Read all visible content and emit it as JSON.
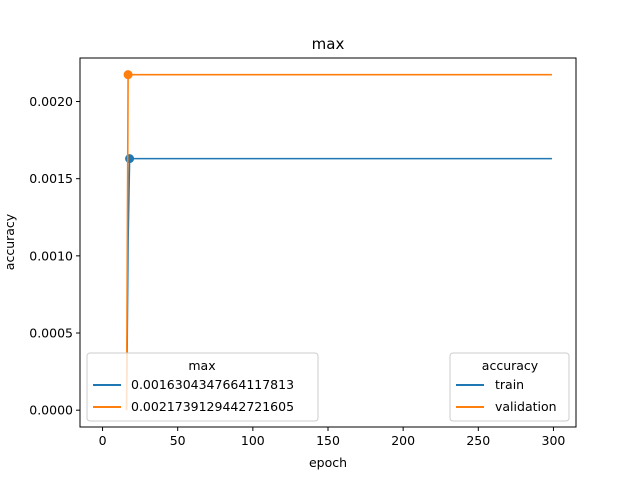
{
  "chart_data": {
    "type": "line",
    "title": "max",
    "xlabel": "epoch",
    "ylabel": "accuracy",
    "xlim": [
      -15,
      315
    ],
    "ylim": [
      -0.000109,
      0.002282
    ],
    "grid": false,
    "x_ticks": [
      0,
      50,
      100,
      150,
      200,
      250,
      300
    ],
    "y_ticks": [
      0.0,
      0.0005,
      0.001,
      0.0015,
      0.002
    ],
    "y_tick_labels": [
      "0.0000",
      "0.0005",
      "0.0010",
      "0.0015",
      "0.0020"
    ],
    "series": [
      {
        "name": "train",
        "color": "#1f77b4",
        "x": [
          16,
          17,
          18,
          299
        ],
        "y": [
          0.0,
          0.0011,
          0.00163,
          0.00163
        ],
        "marker": {
          "x": 18,
          "y": 0.00163
        }
      },
      {
        "name": "validation",
        "color": "#ff7f0e",
        "x": [
          16,
          17,
          299
        ],
        "y": [
          0.0,
          0.002174,
          0.002174
        ],
        "marker": {
          "x": 17,
          "y": 0.002174
        }
      }
    ],
    "legends": [
      {
        "title": "max",
        "position": "lower-left",
        "entries": [
          {
            "label": "0.0016304347664117813",
            "color": "#1f77b4"
          },
          {
            "label": "0.0021739129442721605",
            "color": "#ff7f0e"
          }
        ]
      },
      {
        "title": "accuracy",
        "position": "lower-right",
        "entries": [
          {
            "label": "train",
            "color": "#1f77b4"
          },
          {
            "label": "validation",
            "color": "#ff7f0e"
          }
        ]
      }
    ]
  }
}
